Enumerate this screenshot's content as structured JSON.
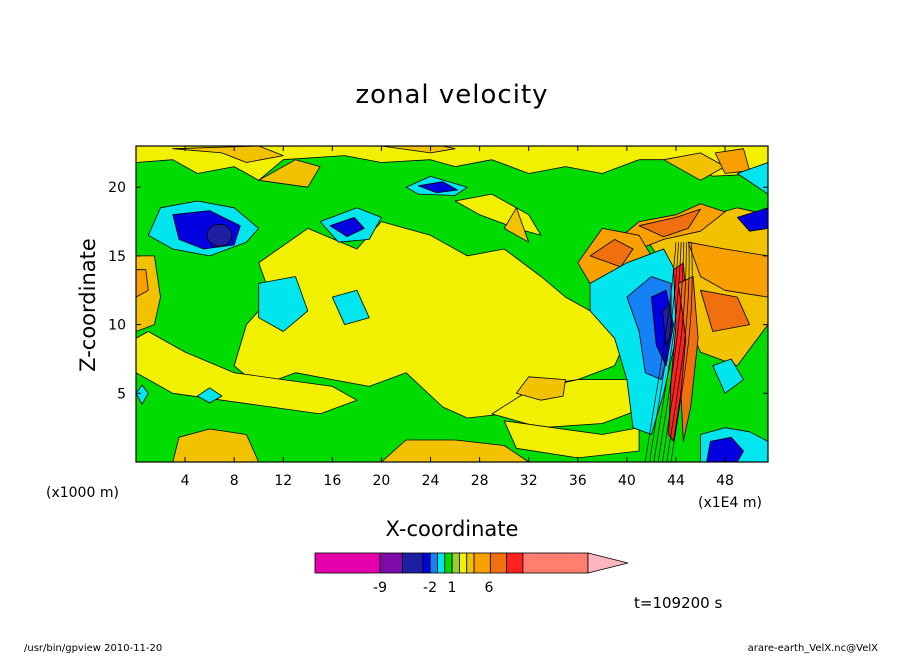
{
  "chart_data": {
    "type": "heatmap",
    "title": "zonal velocity",
    "xlabel": "X-coordinate",
    "ylabel": "Z-coordinate",
    "x_unit": "(x1E4 m)",
    "y_unit": "(x1000 m)",
    "xlim": [
      0,
      51.5
    ],
    "ylim": [
      0,
      23
    ],
    "x_ticks": [
      4,
      8,
      12,
      16,
      20,
      24,
      28,
      32,
      36,
      40,
      44,
      48
    ],
    "y_ticks": [
      5,
      10,
      15,
      20
    ],
    "colorbar": {
      "labels": [
        {
          "text": "-9",
          "value": -9
        },
        {
          "text": "-2",
          "value": -2
        },
        {
          "text": "1",
          "value": 1
        },
        {
          "text": "6",
          "value": 6
        }
      ],
      "colors": [
        "#e600ac",
        "#7d0ba8",
        "#1f1fa3",
        "#0000e0",
        "#1680f5",
        "#00e5ee",
        "#00dc00",
        "#9acd32",
        "#f0f000",
        "#f2c200",
        "#f7a000",
        "#f07010",
        "#ff2020",
        "#ff7e6f",
        "#ffb6c1"
      ]
    },
    "time_label": "t=109200 s"
  },
  "footer": {
    "left": "/usr/bin/gpview   2010-11-20",
    "right": "arare-earth_VelX.nc@VelX"
  }
}
